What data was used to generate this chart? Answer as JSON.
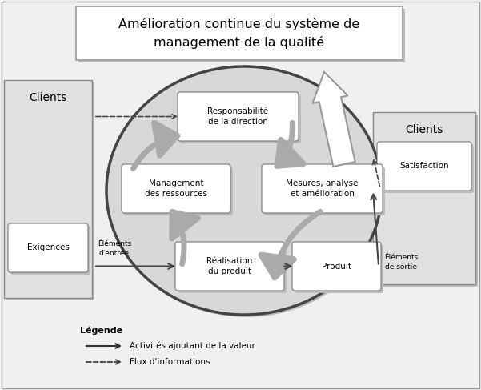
{
  "title": "Amélioration continue du système de\nmanagement de la qualité",
  "title_fontsize": 11.5,
  "bg_color": "#ebebeb",
  "side_left_label": "Clients",
  "side_right_label": "Clients",
  "exigences_label": "Exigences",
  "satisfaction_label": "Satisfaction",
  "elements_entree": "Éléments\nd'entrée",
  "elements_sortie": "Éléments\nde sortie",
  "legend_title": "Légende",
  "legend_solid": "Activités ajoutant de la valeur",
  "legend_dashed": "Flux d'informations",
  "box_resp": "Responsabilité\nde la direction",
  "box_mgmt": "Management\ndes ressources",
  "box_mesure": "Mesures, analyse\net amélioration",
  "box_real": "Réalisation\ndu produit",
  "box_prod": "Produit"
}
